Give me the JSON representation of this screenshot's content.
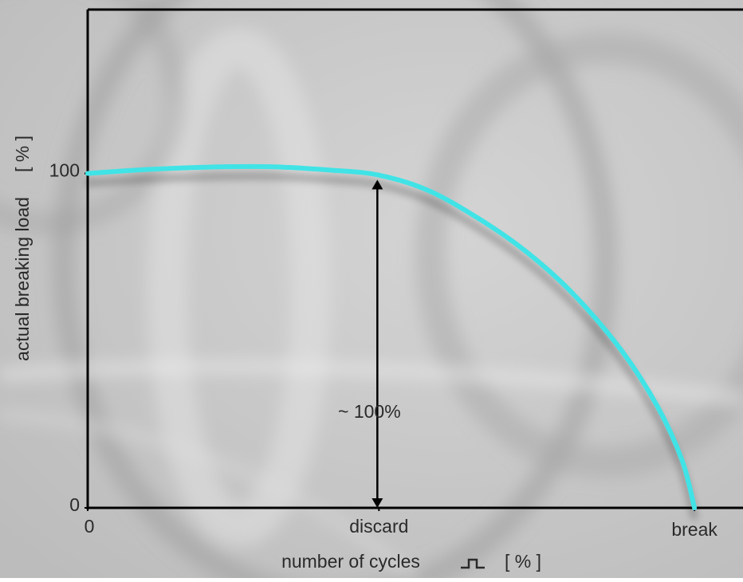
{
  "chart_data": {
    "type": "line",
    "y_label": "actual breaking load",
    "y_unit": "[ % ]",
    "x_label": "number of cycles",
    "x_unit": "[ % ]",
    "annotation": "~ 100%",
    "xlim": [
      0,
      108
    ],
    "ylim": [
      0,
      149
    ],
    "xticks": [
      0,
      {
        "value": 48,
        "label": "discard"
      },
      {
        "value": 100,
        "label": "break"
      }
    ],
    "yticks": [
      0,
      100
    ],
    "series": [
      {
        "color": "#3fe3e6",
        "x": [
          0,
          10,
          20,
          30,
          40,
          48,
          56,
          64,
          72,
          80,
          88,
          94,
          98,
          100
        ],
        "values": [
          100,
          101.2,
          101.9,
          102,
          101,
          99.5,
          95,
          87,
          77,
          64,
          47,
          30,
          14,
          0
        ]
      }
    ]
  }
}
